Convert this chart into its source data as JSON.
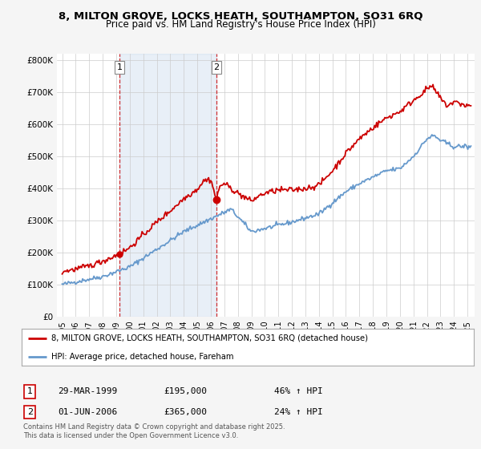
{
  "title_line1": "8, MILTON GROVE, LOCKS HEATH, SOUTHAMPTON, SO31 6RQ",
  "title_line2": "Price paid vs. HM Land Registry's House Price Index (HPI)",
  "ylim": [
    0,
    820000
  ],
  "yticks": [
    0,
    100000,
    200000,
    300000,
    400000,
    500000,
    600000,
    700000,
    800000
  ],
  "ytick_labels": [
    "£0",
    "£100K",
    "£200K",
    "£300K",
    "£400K",
    "£500K",
    "£600K",
    "£700K",
    "£800K"
  ],
  "background_color": "#f5f5f5",
  "plot_bg_color": "#ffffff",
  "red_color": "#cc0000",
  "blue_color": "#6699cc",
  "shade_color": "#ddeeff",
  "marker1_date_x": 1999.24,
  "marker1_price": 195000,
  "marker2_date_x": 2006.41,
  "marker2_price": 365000,
  "legend_red_label": "8, MILTON GROVE, LOCKS HEATH, SOUTHAMPTON, SO31 6RQ (detached house)",
  "legend_blue_label": "HPI: Average price, detached house, Fareham",
  "annotation1_label": "1",
  "annotation2_label": "2",
  "table_row1": [
    "1",
    "29-MAR-1999",
    "£195,000",
    "46% ↑ HPI"
  ],
  "table_row2": [
    "2",
    "01-JUN-2006",
    "£365,000",
    "24% ↑ HPI"
  ],
  "footer": "Contains HM Land Registry data © Crown copyright and database right 2025.\nThis data is licensed under the Open Government Licence v3.0.",
  "xlim_left": 1994.6,
  "xlim_right": 2025.5
}
